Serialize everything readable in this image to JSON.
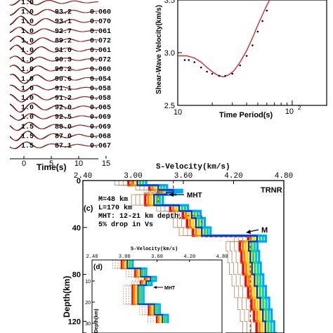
{
  "colors": {
    "obs": "#000000",
    "syn": "#c0392b",
    "fit": "#d62728",
    "model_best": "#0b2fd6",
    "ref": "#c0392b"
  },
  "panel_a": {
    "xlabel": "Time(s)",
    "xticks": [
      "0",
      "5",
      "10",
      "15"
    ],
    "rows": [
      {
        "dist": "1.0",
        "vel": "",
        "err": ""
      },
      {
        "dist": "1.0",
        "vel": "93.2",
        "err": "0.060"
      },
      {
        "dist": "1.0",
        "vel": "93.1",
        "err": "0.070"
      },
      {
        "dist": "1.0",
        "vel": "92.7",
        "err": "0.061"
      },
      {
        "dist": "1.0",
        "vel": "89.2",
        "err": "0.072"
      },
      {
        "dist": "1.0",
        "vel": "91.0",
        "err": "0.061"
      },
      {
        "dist": "1.0",
        "vel": "90.3",
        "err": "0.072"
      },
      {
        "dist": "1.0",
        "vel": "90.2",
        "err": "0.060"
      },
      {
        "dist": "1.0",
        "vel": "90.6",
        "err": "0.054"
      },
      {
        "dist": "1.0",
        "vel": "91.1",
        "err": "0.058"
      },
      {
        "dist": "1.0",
        "vel": "91.2",
        "err": "0.058"
      },
      {
        "dist": "1.0",
        "vel": "92.0",
        "err": "0.065"
      },
      {
        "dist": "1.0",
        "vel": "92.5",
        "err": "0.069"
      },
      {
        "dist": "1.5",
        "vel": "88.0",
        "err": "0.069"
      },
      {
        "dist": "1.5",
        "vel": "87.0",
        "err": "0.068"
      },
      {
        "dist": "1.5",
        "vel": "87.1",
        "err": "0.067"
      }
    ]
  },
  "chart_data": [
    {
      "type": "scatter",
      "title": "",
      "xlabel": "Time Period(s)",
      "ylabel": "Shear-Wave Velocity(km/s)",
      "xscale": "log",
      "xlim": [
        10,
        200
      ],
      "ylim": [
        2.5,
        3.5
      ],
      "xtick_labels": [
        "10",
        "10"
      ],
      "ytick_labels": [
        "2.5",
        "3.0",
        "3.5"
      ],
      "observed": {
        "x": [
          11.5,
          12.5,
          14,
          16,
          18,
          20,
          23,
          26,
          30,
          35,
          40,
          45,
          50,
          55,
          60
        ],
        "y": [
          2.93,
          2.93,
          2.91,
          2.86,
          2.82,
          2.8,
          2.78,
          2.78,
          2.8,
          2.88,
          2.97,
          3.07,
          3.2,
          3.3,
          3.4
        ]
      },
      "fit": {
        "x": [
          10,
          12,
          14,
          16,
          18,
          20,
          22,
          25,
          28,
          31,
          35,
          40,
          45,
          50,
          55,
          60,
          65
        ],
        "y": [
          2.97,
          2.97,
          2.95,
          2.91,
          2.86,
          2.82,
          2.79,
          2.77,
          2.79,
          2.83,
          2.91,
          3.02,
          3.14,
          3.26,
          3.36,
          3.45,
          3.52
        ]
      }
    },
    {
      "type": "line",
      "title": "",
      "panel_label": "(c)",
      "station": "TRNR",
      "xlabel": "S-Velocity(km/s)",
      "ylabel": "Depth(km)",
      "xlim": [
        2.4,
        4.8
      ],
      "ylim": [
        0,
        140
      ],
      "xticks": [
        "2.40",
        "3.00",
        "3.60",
        "4.20",
        "4.80"
      ],
      "yticks": [
        "0",
        "40",
        "80",
        "120"
      ],
      "annotations": [
        "M=48  km",
        "L=170  km",
        "MHT: 12-21 km depth,",
        "5% drop in Vs"
      ],
      "arrows": [
        "MHT",
        "M"
      ],
      "best_model": {
        "depth": [
          0,
          4,
          4,
          8,
          8,
          10,
          10,
          12,
          12,
          21,
          21,
          26,
          26,
          32,
          32,
          40,
          40,
          47,
          47,
          52,
          52,
          60,
          60,
          70,
          70,
          80,
          80,
          90,
          90,
          100,
          100,
          110,
          110,
          120,
          120,
          130,
          130,
          140
        ],
        "vs": [
          3.05,
          3.05,
          3.3,
          3.3,
          3.48,
          3.48,
          3.4,
          3.4,
          3.25,
          3.25,
          3.55,
          3.55,
          3.7,
          3.7,
          3.75,
          3.75,
          3.82,
          3.82,
          4.48,
          4.48,
          4.38,
          4.38,
          4.4,
          4.4,
          4.42,
          4.42,
          4.45,
          4.45,
          4.48,
          4.48,
          4.52,
          4.52,
          4.55,
          4.55,
          4.58,
          4.58,
          4.6,
          4.6
        ]
      },
      "reference_model": {
        "depth": [
          0,
          12,
          12,
          21,
          21,
          30,
          30,
          48,
          48,
          140
        ],
        "vs": [
          3.48,
          3.48,
          3.3,
          3.3,
          3.55,
          3.55,
          3.82,
          3.82,
          4.4,
          4.4
        ]
      }
    },
    {
      "type": "line",
      "title": "",
      "panel_label": "(d)",
      "xlabel": "S-Velocity(km/s)",
      "ylabel": "Depth(km)",
      "xlim": [
        2.4,
        4.8
      ],
      "ylim": [
        0,
        30
      ],
      "xticks": [
        "2.40",
        "3.00",
        "3.60",
        "4.20",
        "4.80"
      ],
      "yticks": [
        "10",
        "20",
        "30"
      ],
      "arrows": [
        "MHT"
      ],
      "best_model": {
        "depth": [
          0,
          4,
          4,
          8,
          8,
          10,
          10,
          12,
          12,
          21,
          21,
          26,
          26,
          30
        ],
        "vs": [
          3.05,
          3.05,
          3.3,
          3.3,
          3.48,
          3.48,
          3.4,
          3.4,
          3.25,
          3.25,
          3.55,
          3.55,
          3.7,
          3.7
        ]
      }
    }
  ]
}
